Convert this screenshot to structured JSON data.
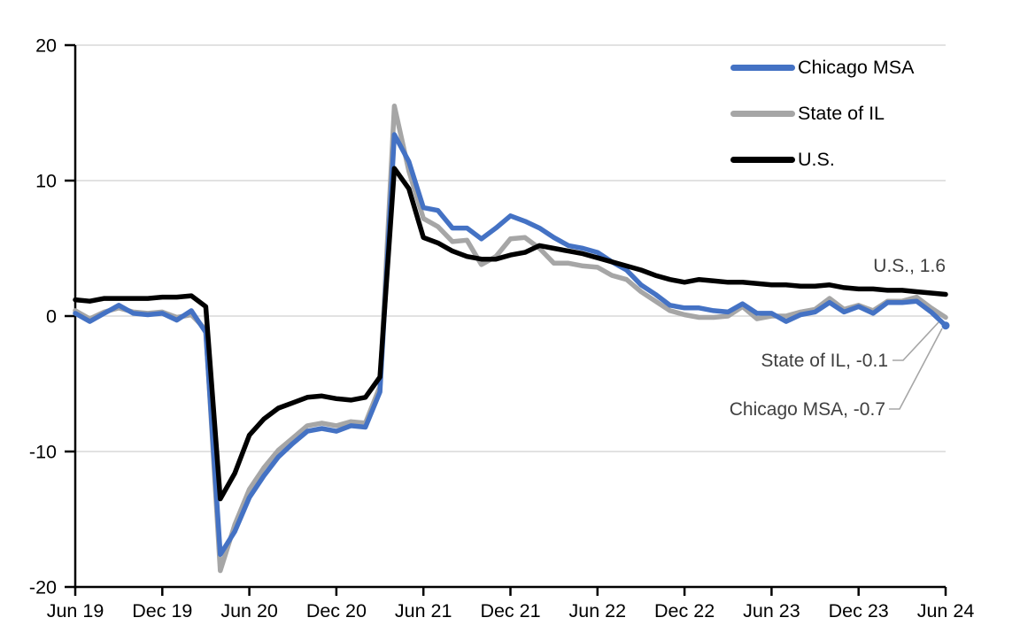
{
  "chart": {
    "background": "#FFFFFF",
    "axis_color": "#000000",
    "gridline_color": "#D9D9D9",
    "tick_label_color": "#000000",
    "annotation_color": "#404040",
    "leader_line_color": "#A6A6A6"
  },
  "chart_data": {
    "type": "line",
    "title": "",
    "frequency": "monthly",
    "x_tick_labels": [
      "Jun 19",
      "Dec 19",
      "Jun 20",
      "Dec 20",
      "Jun 21",
      "Dec 21",
      "Jun 22",
      "Dec 22",
      "Jun 23",
      "Dec 23",
      "Jun 24"
    ],
    "y_tick_labels": [
      "20",
      "10",
      "0",
      "-10",
      "-20"
    ],
    "y_ticks": [
      20,
      10,
      0,
      -10,
      -20
    ],
    "ylim": [
      -20,
      20
    ],
    "gridlines_at": [
      20,
      10,
      0,
      -10
    ],
    "grid": true,
    "legend_position": "top-right",
    "series": [
      {
        "name": "Chicago MSA",
        "color": "#4472C4",
        "end_value": -0.7,
        "values": [
          0.2,
          -0.4,
          0.2,
          0.8,
          0.2,
          0.1,
          0.2,
          -0.3,
          0.4,
          -1.2,
          -17.6,
          -15.9,
          -13.4,
          -11.8,
          -10.4,
          -9.4,
          -8.5,
          -8.3,
          -8.5,
          -8.1,
          -8.2,
          -5.6,
          13.4,
          11.4,
          8.0,
          7.8,
          6.5,
          6.5,
          5.7,
          6.5,
          7.4,
          7.0,
          6.5,
          5.8,
          5.2,
          5.0,
          4.7,
          4.0,
          3.4,
          2.3,
          1.6,
          0.8,
          0.6,
          0.6,
          0.4,
          0.3,
          0.9,
          0.2,
          0.2,
          -0.4,
          0.1,
          0.3,
          1.0,
          0.3,
          0.7,
          0.2,
          1.0,
          1.0,
          1.1,
          0.3,
          -0.7
        ]
      },
      {
        "name": "State of IL",
        "color": "#A6A6A6",
        "end_value": -0.1,
        "values": [
          0.4,
          -0.2,
          0.3,
          0.6,
          0.3,
          0.2,
          0.3,
          -0.1,
          0.1,
          -1.0,
          -18.8,
          -15.4,
          -12.8,
          -11.2,
          -9.9,
          -9.0,
          -8.1,
          -7.9,
          -8.1,
          -7.8,
          -7.9,
          -5.2,
          15.5,
          10.7,
          7.2,
          6.6,
          5.5,
          5.6,
          3.8,
          4.4,
          5.7,
          5.8,
          5.0,
          3.9,
          3.9,
          3.7,
          3.6,
          3.0,
          2.7,
          1.8,
          1.1,
          0.4,
          0.1,
          -0.1,
          -0.1,
          0.0,
          0.7,
          -0.2,
          0.0,
          0.0,
          0.3,
          0.5,
          1.3,
          0.5,
          0.8,
          0.4,
          1.1,
          1.1,
          1.4,
          0.6,
          -0.1
        ]
      },
      {
        "name": "U.S.",
        "color": "#000000",
        "end_value": 1.6,
        "values": [
          1.2,
          1.1,
          1.3,
          1.3,
          1.3,
          1.3,
          1.4,
          1.4,
          1.5,
          0.7,
          -13.5,
          -11.6,
          -8.8,
          -7.6,
          -6.8,
          -6.4,
          -6.0,
          -5.9,
          -6.1,
          -6.2,
          -6.0,
          -4.5,
          10.9,
          9.4,
          5.8,
          5.4,
          4.8,
          4.4,
          4.2,
          4.2,
          4.5,
          4.7,
          5.2,
          5.0,
          4.8,
          4.6,
          4.3,
          4.0,
          3.7,
          3.4,
          3.0,
          2.7,
          2.5,
          2.7,
          2.6,
          2.5,
          2.5,
          2.4,
          2.3,
          2.3,
          2.2,
          2.2,
          2.3,
          2.1,
          2.0,
          2.0,
          1.9,
          1.9,
          1.8,
          1.7,
          1.6
        ]
      }
    ],
    "annotations": [
      {
        "text": "U.S., 1.6",
        "series": "U.S."
      },
      {
        "text": "State of IL, -0.1",
        "series": "State of IL"
      },
      {
        "text": "Chicago MSA, -0.7",
        "series": "Chicago MSA"
      }
    ]
  }
}
